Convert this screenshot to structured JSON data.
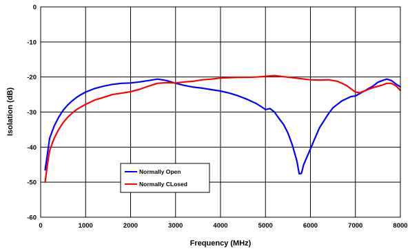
{
  "chart_data": {
    "type": "line",
    "title": "",
    "xlabel": "Frequency (MHz)",
    "ylabel": "Isolation (dB)",
    "xlim": [
      0,
      8000
    ],
    "ylim": [
      -60,
      0
    ],
    "x_ticks": [
      0,
      1000,
      2000,
      3000,
      4000,
      5000,
      6000,
      7000,
      8000
    ],
    "y_ticks": [
      0,
      -10,
      -20,
      -30,
      -40,
      -50,
      -60
    ],
    "grid": true,
    "legend_position": "lower-left",
    "series": [
      {
        "name": "Normally Open",
        "color": "#0000ff",
        "x": [
          100,
          150,
          200,
          300,
          400,
          500,
          600,
          700,
          800,
          900,
          1000,
          1200,
          1400,
          1600,
          1800,
          2000,
          2200,
          2400,
          2600,
          2700,
          2800,
          3000,
          3200,
          3400,
          3600,
          3800,
          4000,
          4200,
          4400,
          4600,
          4800,
          4900,
          5000,
          5100,
          5200,
          5300,
          5400,
          5500,
          5600,
          5700,
          5750,
          5800,
          5850,
          5900,
          6000,
          6100,
          6200,
          6300,
          6400,
          6500,
          6700,
          6900,
          7000,
          7200,
          7400,
          7500,
          7600,
          7700,
          7800,
          7900,
          8000
        ],
        "y": [
          -46.5,
          -42,
          -37.5,
          -34,
          -31.5,
          -29.5,
          -28,
          -26.8,
          -25.8,
          -25,
          -24.3,
          -23.3,
          -22.6,
          -22.1,
          -21.8,
          -21.7,
          -21.4,
          -21,
          -20.6,
          -20.8,
          -21,
          -21.8,
          -22.4,
          -22.9,
          -23.2,
          -23.6,
          -24,
          -24.6,
          -25.4,
          -26.4,
          -27.6,
          -28.4,
          -29.3,
          -29,
          -30,
          -31.8,
          -33.5,
          -36,
          -39.5,
          -44,
          -47.6,
          -47.5,
          -45,
          -43.5,
          -40.5,
          -37.5,
          -34.5,
          -32.5,
          -30.5,
          -28.8,
          -26.8,
          -25.6,
          -25.4,
          -24,
          -22.5,
          -21.5,
          -21,
          -20.6,
          -21,
          -22,
          -22.8
        ]
      },
      {
        "name": "Normally CLosed",
        "color": "#ff0000",
        "x": [
          100,
          150,
          200,
          300,
          400,
          500,
          600,
          700,
          800,
          900,
          1000,
          1200,
          1400,
          1600,
          1800,
          2000,
          2200,
          2400,
          2600,
          2800,
          3000,
          3200,
          3400,
          3600,
          3800,
          4000,
          4200,
          4400,
          4600,
          4800,
          5000,
          5200,
          5400,
          5600,
          5800,
          6000,
          6200,
          6400,
          6600,
          6800,
          7000,
          7100,
          7200,
          7400,
          7600,
          7700,
          7800,
          7900,
          8000
        ],
        "y": [
          -50,
          -45,
          -41,
          -37.5,
          -35,
          -33,
          -31.5,
          -30.3,
          -29.3,
          -28.5,
          -27.8,
          -26.6,
          -25.8,
          -25,
          -24.6,
          -24.2,
          -23.5,
          -22.6,
          -21.8,
          -21.6,
          -21.7,
          -21.4,
          -21.2,
          -20.8,
          -20.6,
          -20.3,
          -20.2,
          -20.1,
          -20.1,
          -20,
          -19.8,
          -19.6,
          -19.9,
          -20.2,
          -20.5,
          -20.8,
          -20.9,
          -20.8,
          -21.2,
          -22.4,
          -24.3,
          -24.5,
          -24,
          -23,
          -22.3,
          -21.8,
          -21.8,
          -22.5,
          -23.8
        ]
      }
    ]
  }
}
